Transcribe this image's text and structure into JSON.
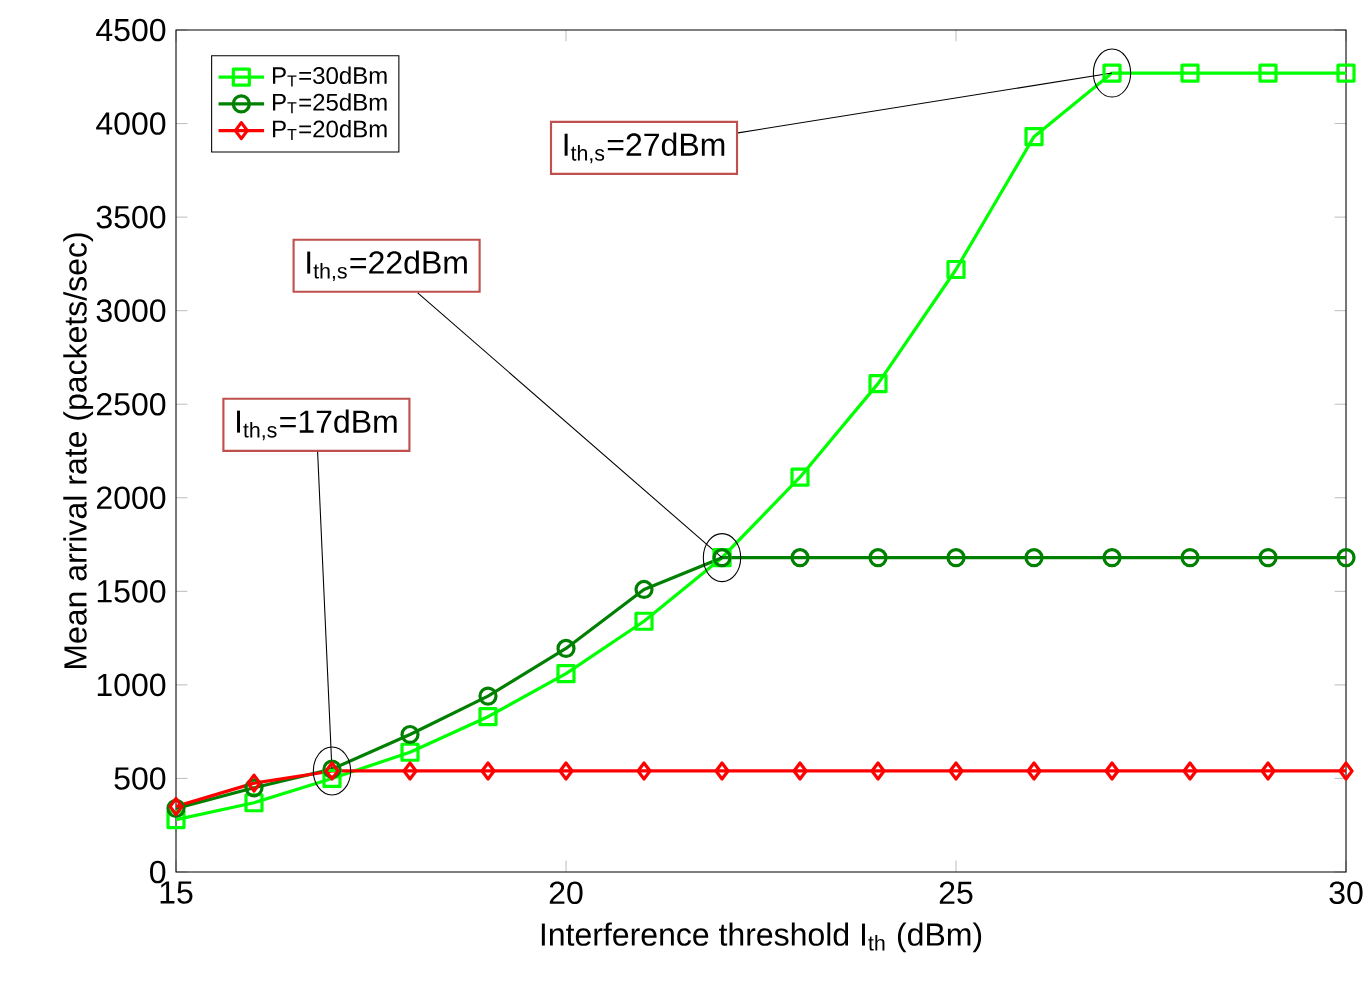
{
  "chart_data": {
    "type": "line",
    "xlabel": "Interference threshold I$_{th}$ (dBm)",
    "ylabel": "Mean arrival rate (packets/sec)",
    "x": [
      15,
      16,
      17,
      18,
      19,
      20,
      21,
      22,
      23,
      24,
      25,
      26,
      27,
      28,
      29,
      30
    ],
    "series": [
      {
        "name": "P$_{T}$=30dBm",
        "color": "#00ff00",
        "marker": "square",
        "values": [
          280,
          370,
          500,
          640,
          830,
          1060,
          1340,
          1680,
          2110,
          2610,
          3220,
          3930,
          4270,
          4270,
          4270,
          4270
        ]
      },
      {
        "name": "P$_{T}$=25dBm",
        "color": "#008000",
        "marker": "circle",
        "values": [
          340,
          450,
          550,
          735,
          940,
          1195,
          1510,
          1680,
          1680,
          1680,
          1680,
          1680,
          1680,
          1680,
          1680,
          1680
        ]
      },
      {
        "name": "P$_{T}$=20dBm",
        "color": "#ff0000",
        "marker": "diamond",
        "values": [
          350,
          475,
          540,
          540,
          540,
          540,
          540,
          540,
          540,
          540,
          540,
          540,
          540,
          540,
          540,
          540
        ]
      }
    ],
    "xlim": [
      15,
      30
    ],
    "ylim": [
      0,
      4500
    ],
    "xticks": [
      15,
      20,
      25,
      30
    ],
    "yticks": [
      0,
      500,
      1000,
      1500,
      2000,
      2500,
      3000,
      3500,
      4000,
      4500
    ],
    "legend": "top left",
    "grid": false,
    "line_style": "solid",
    "annotations": [
      {
        "text": "I$_{th,s}$=17dBm",
        "x": 17,
        "y": 540
      },
      {
        "text": "I$_{th,s}$=22dBm",
        "x": 22,
        "y": 1680
      },
      {
        "text": "I$_{th,s}$=27dBm",
        "x": 27,
        "y": 4270
      }
    ]
  }
}
